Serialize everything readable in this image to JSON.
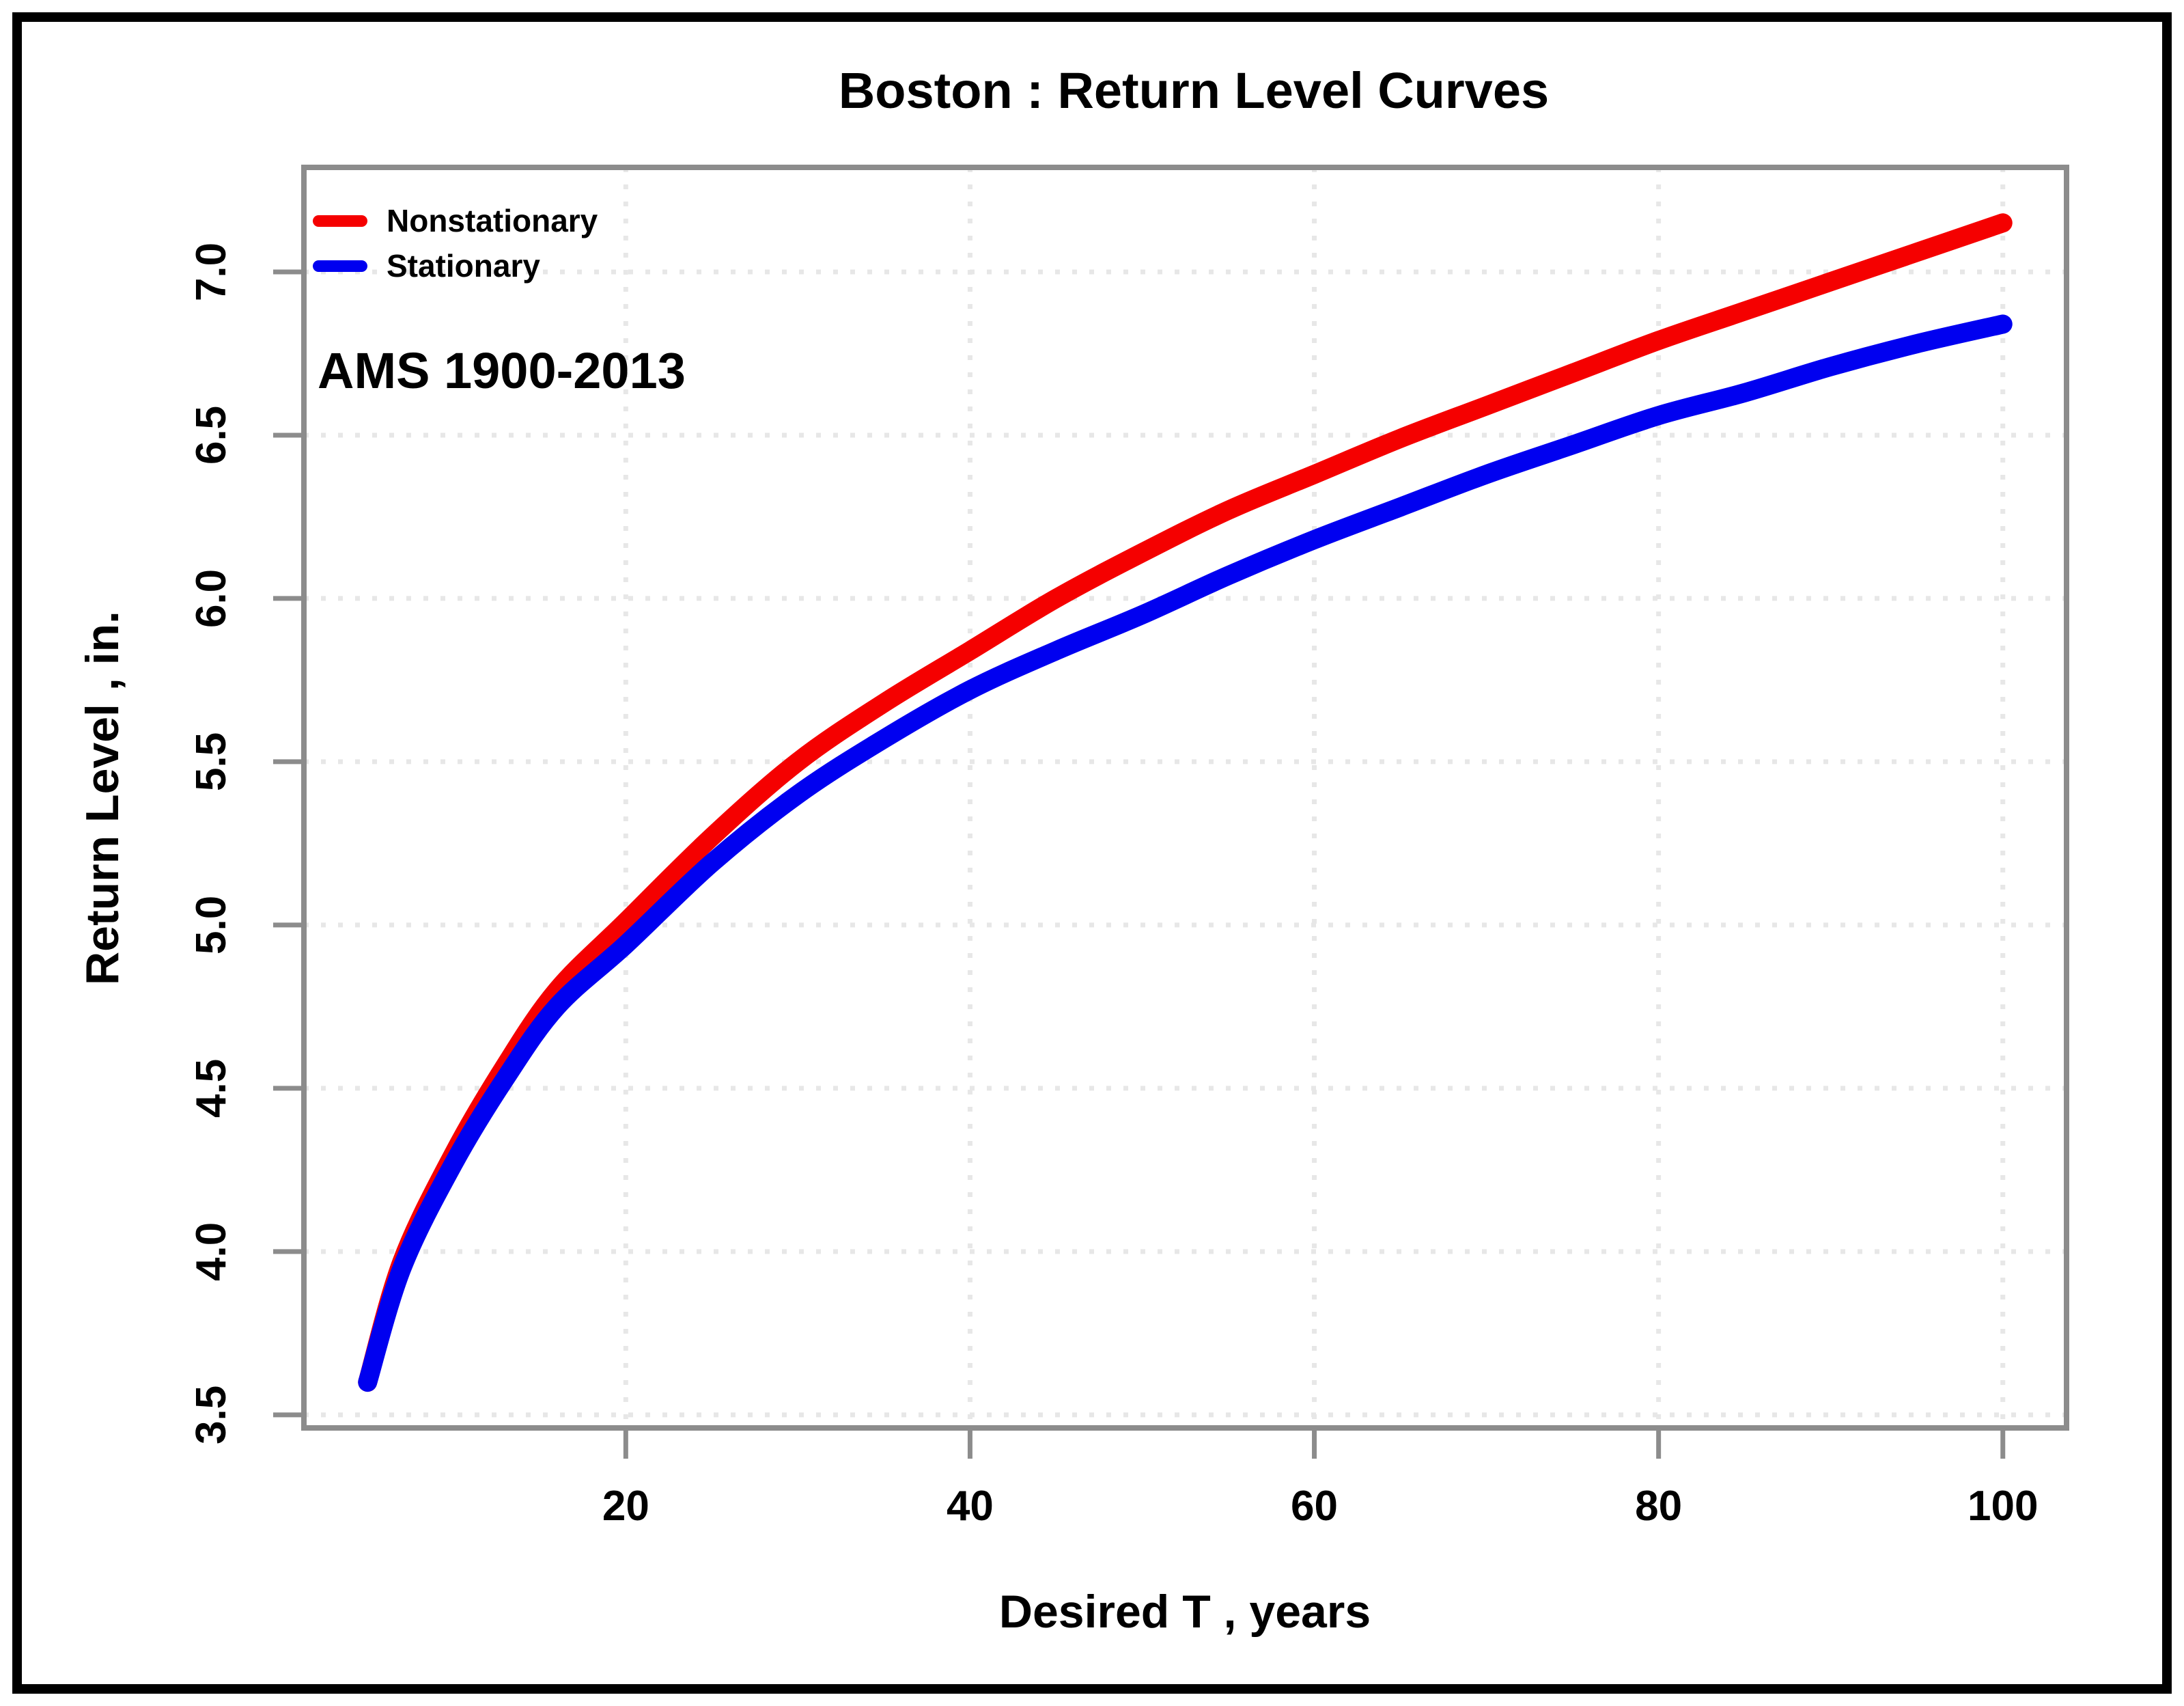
{
  "chart_data": {
    "type": "line",
    "title": "Boston : Return Level Curves",
    "xlabel": "Desired T , years",
    "ylabel": "Return Level , in.",
    "annotation": "AMS 1900-2013",
    "grid": true,
    "legend_position": "top-left",
    "xlim": [
      1.3,
      103.7
    ],
    "ylim": [
      3.46,
      7.32
    ],
    "x_ticks": [
      20,
      40,
      60,
      80,
      100
    ],
    "x_tick_labels": [
      "20",
      "40",
      "60",
      "80",
      "100"
    ],
    "y_ticks": [
      3.5,
      4.0,
      4.5,
      5.0,
      5.5,
      6.0,
      6.5,
      7.0
    ],
    "y_tick_labels": [
      "3.5",
      "4.0",
      "4.5",
      "5.0",
      "5.5",
      "6.0",
      "6.5",
      "7.0"
    ],
    "x": [
      5,
      7,
      10,
      13,
      16,
      20,
      25,
      30,
      35,
      40,
      45,
      50,
      55,
      60,
      65,
      70,
      75,
      80,
      85,
      90,
      95,
      100
    ],
    "series": [
      {
        "name": "Nonstationary",
        "color": "#f50000",
        "values": [
          3.6,
          3.97,
          4.3,
          4.57,
          4.8,
          5.01,
          5.27,
          5.5,
          5.68,
          5.84,
          6.0,
          6.14,
          6.27,
          6.38,
          6.49,
          6.59,
          6.69,
          6.79,
          6.88,
          6.97,
          7.06,
          7.15
        ]
      },
      {
        "name": "Stationary",
        "color": "#0000f0",
        "values": [
          3.6,
          3.95,
          4.27,
          4.53,
          4.75,
          4.94,
          5.19,
          5.4,
          5.57,
          5.72,
          5.84,
          5.95,
          6.07,
          6.18,
          6.28,
          6.38,
          6.47,
          6.56,
          6.63,
          6.71,
          6.78,
          6.84
        ]
      }
    ],
    "colors": {
      "axis_box": "#8c8c8c",
      "tick": "#8c8c8c",
      "gridline": "#e7e7e7",
      "text": "#000000",
      "frame": "#000000",
      "background": "#ffffff"
    }
  }
}
